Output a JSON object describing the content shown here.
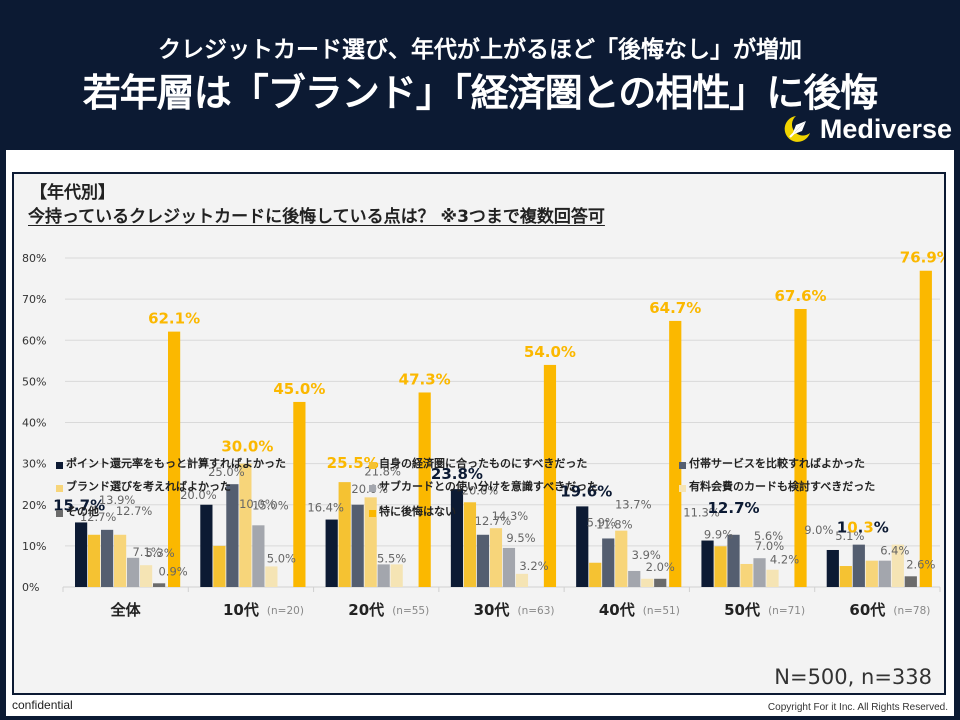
{
  "header": {
    "subtitle": "クレジットカード選び、年代が上がるほど「後悔なし」が増加",
    "title": "若年層は「ブランド」「経済圏との相性」に後悔",
    "logo_text": "Mediverse"
  },
  "panel": {
    "section_label": "【年代別】",
    "question": "今持っているクレジットカードに後悔している点は？ ※3つまで複数回答可",
    "sample_note": "N=500, n=338"
  },
  "footer": {
    "confidential": "confidential",
    "copyright": "Copyright For it Inc. All Rights Reserved."
  },
  "colors": {
    "navy": "#0c1a33",
    "yellow": "#f5c232",
    "dark_grey": "#545e70",
    "light_yellow": "#f7d57a",
    "grey": "#a3a6ad",
    "pale": "#f5e4b4",
    "other": "#6b6b6b",
    "no_regret": "#fbb800"
  },
  "chart_data": {
    "type": "bar",
    "title": "今持っているクレジットカードに後悔している点は？ ※3つまで複数回答可",
    "xlabel": "",
    "ylabel": "",
    "ylim": [
      0,
      80
    ],
    "yticks": [
      "0%",
      "10%",
      "20%",
      "30%",
      "40%",
      "50%",
      "60%",
      "70%",
      "80%"
    ],
    "grid": true,
    "legend_position": "bottom",
    "categories": [
      "全体",
      "10代",
      "20代",
      "30代",
      "40代",
      "50代",
      "60代"
    ],
    "category_notes": [
      "",
      "(n=20)",
      "(n=55)",
      "(n=63)",
      "(n=51)",
      "(n=71)",
      "(n=78)"
    ],
    "series": [
      {
        "name": "ポイント還元率をもっと計算すればよかった",
        "color": "#0c1a33",
        "values": [
          15.7,
          20.0,
          16.4,
          23.8,
          19.6,
          11.3,
          9.0
        ]
      },
      {
        "name": "自身の経済圏に合ったものにすべきだった",
        "color": "#f5c232",
        "values": [
          12.7,
          10.0,
          25.5,
          20.6,
          5.9,
          9.9,
          5.1
        ]
      },
      {
        "name": "付帯サービスを比較すればよかった",
        "color": "#545e70",
        "values": [
          13.9,
          25.0,
          20.0,
          12.7,
          11.8,
          12.7,
          10.3
        ]
      },
      {
        "name": "ブランド選びを考えればよかった",
        "color": "#f7d57a",
        "values": [
          12.7,
          30.0,
          21.8,
          14.3,
          13.7,
          5.6,
          6.4
        ]
      },
      {
        "name": "サブカードとの使い分けを意識すべきだった",
        "color": "#a3a6ad",
        "values": [
          7.1,
          15.0,
          5.5,
          9.5,
          3.9,
          7.0,
          6.4
        ]
      },
      {
        "name": "有料会費のカードも検討すべきだった",
        "color": "#f5e4b4",
        "values": [
          5.3,
          5.0,
          5.5,
          3.2,
          2.0,
          4.2,
          10.3
        ]
      },
      {
        "name": "その他",
        "color": "#6b6b6b",
        "values": [
          0.9,
          0.0,
          0.0,
          0.0,
          2.0,
          0.0,
          2.6
        ]
      },
      {
        "name": "特に後悔はない",
        "color": "#fbb800",
        "values": [
          62.1,
          45.0,
          47.3,
          54.0,
          64.7,
          67.6,
          76.9
        ]
      }
    ],
    "data_labels": [
      [
        {
          "s": 0,
          "text": "15.7%",
          "style": "bold-navy"
        },
        {
          "s": 1,
          "text": "12.7%"
        },
        {
          "s": 2,
          "text": "13.9%"
        },
        {
          "s": 3,
          "text": "12.7%"
        },
        {
          "s": 4,
          "text": "7.1%"
        },
        {
          "s": 5,
          "text": "5.3%"
        },
        {
          "s": 6,
          "text": "0.9%"
        },
        {
          "s": 7,
          "text": "62.1%",
          "style": "bold-yellow"
        }
      ],
      [
        {
          "s": 0,
          "text": "20.0%"
        },
        {
          "s": 1,
          "text": "10.0%"
        },
        {
          "s": 2,
          "text": "25.0%"
        },
        {
          "s": 3,
          "text": "30.0%",
          "style": "bold-yellow"
        },
        {
          "s": 4,
          "text": "15.0%"
        },
        {
          "s": 5,
          "text": "5.0%"
        },
        {
          "s": 7,
          "text": "45.0%",
          "style": "bold-yellow"
        }
      ],
      [
        {
          "s": 0,
          "text": "16.4%"
        },
        {
          "s": 1,
          "text": "25.5%",
          "style": "bold-yellow"
        },
        {
          "s": 2,
          "text": "20.0%"
        },
        {
          "s": 3,
          "text": "21.8%"
        },
        {
          "s": 4,
          "text": "5.5%"
        },
        {
          "s": 7,
          "text": "47.3%",
          "style": "bold-yellow"
        }
      ],
      [
        {
          "s": 0,
          "text": "23.8%",
          "style": "bold-navy"
        },
        {
          "s": 1,
          "text": "20.6%"
        },
        {
          "s": 2,
          "text": "12.7%"
        },
        {
          "s": 3,
          "text": "14.3%"
        },
        {
          "s": 4,
          "text": "9.5%"
        },
        {
          "s": 5,
          "text": "3.2%"
        },
        {
          "s": 7,
          "text": "54.0%",
          "style": "bold-yellow"
        }
      ],
      [
        {
          "s": 0,
          "text": "19.6%",
          "style": "bold-navy"
        },
        {
          "s": 1,
          "text": "5.9%"
        },
        {
          "s": 2,
          "text": "11.8%"
        },
        {
          "s": 3,
          "text": "13.7%"
        },
        {
          "s": 4,
          "text": "3.9%"
        },
        {
          "s": 6,
          "text": "2.0%"
        },
        {
          "s": 7,
          "text": "64.7%",
          "style": "bold-yellow"
        }
      ],
      [
        {
          "s": 0,
          "text": "11.3%"
        },
        {
          "s": 1,
          "text": "9.9%"
        },
        {
          "s": 2,
          "text": "12.7%",
          "style": "bold-navy"
        },
        {
          "s": 3,
          "text": "5.6%"
        },
        {
          "s": 4,
          "text": "7.0%"
        },
        {
          "s": 5,
          "text": "4.2%"
        },
        {
          "s": 7,
          "text": "67.6%",
          "style": "bold-yellow"
        }
      ],
      [
        {
          "s": 0,
          "text": "9.0%"
        },
        {
          "s": 1,
          "text": "5.1%"
        },
        {
          "s": 2,
          "text": "10.3%",
          "style": "bold-mixed"
        },
        {
          "s": 4,
          "text": "6.4%"
        },
        {
          "s": 6,
          "text": "2.6%"
        },
        {
          "s": 7,
          "text": "76.9%",
          "style": "bold-yellow"
        }
      ]
    ]
  }
}
